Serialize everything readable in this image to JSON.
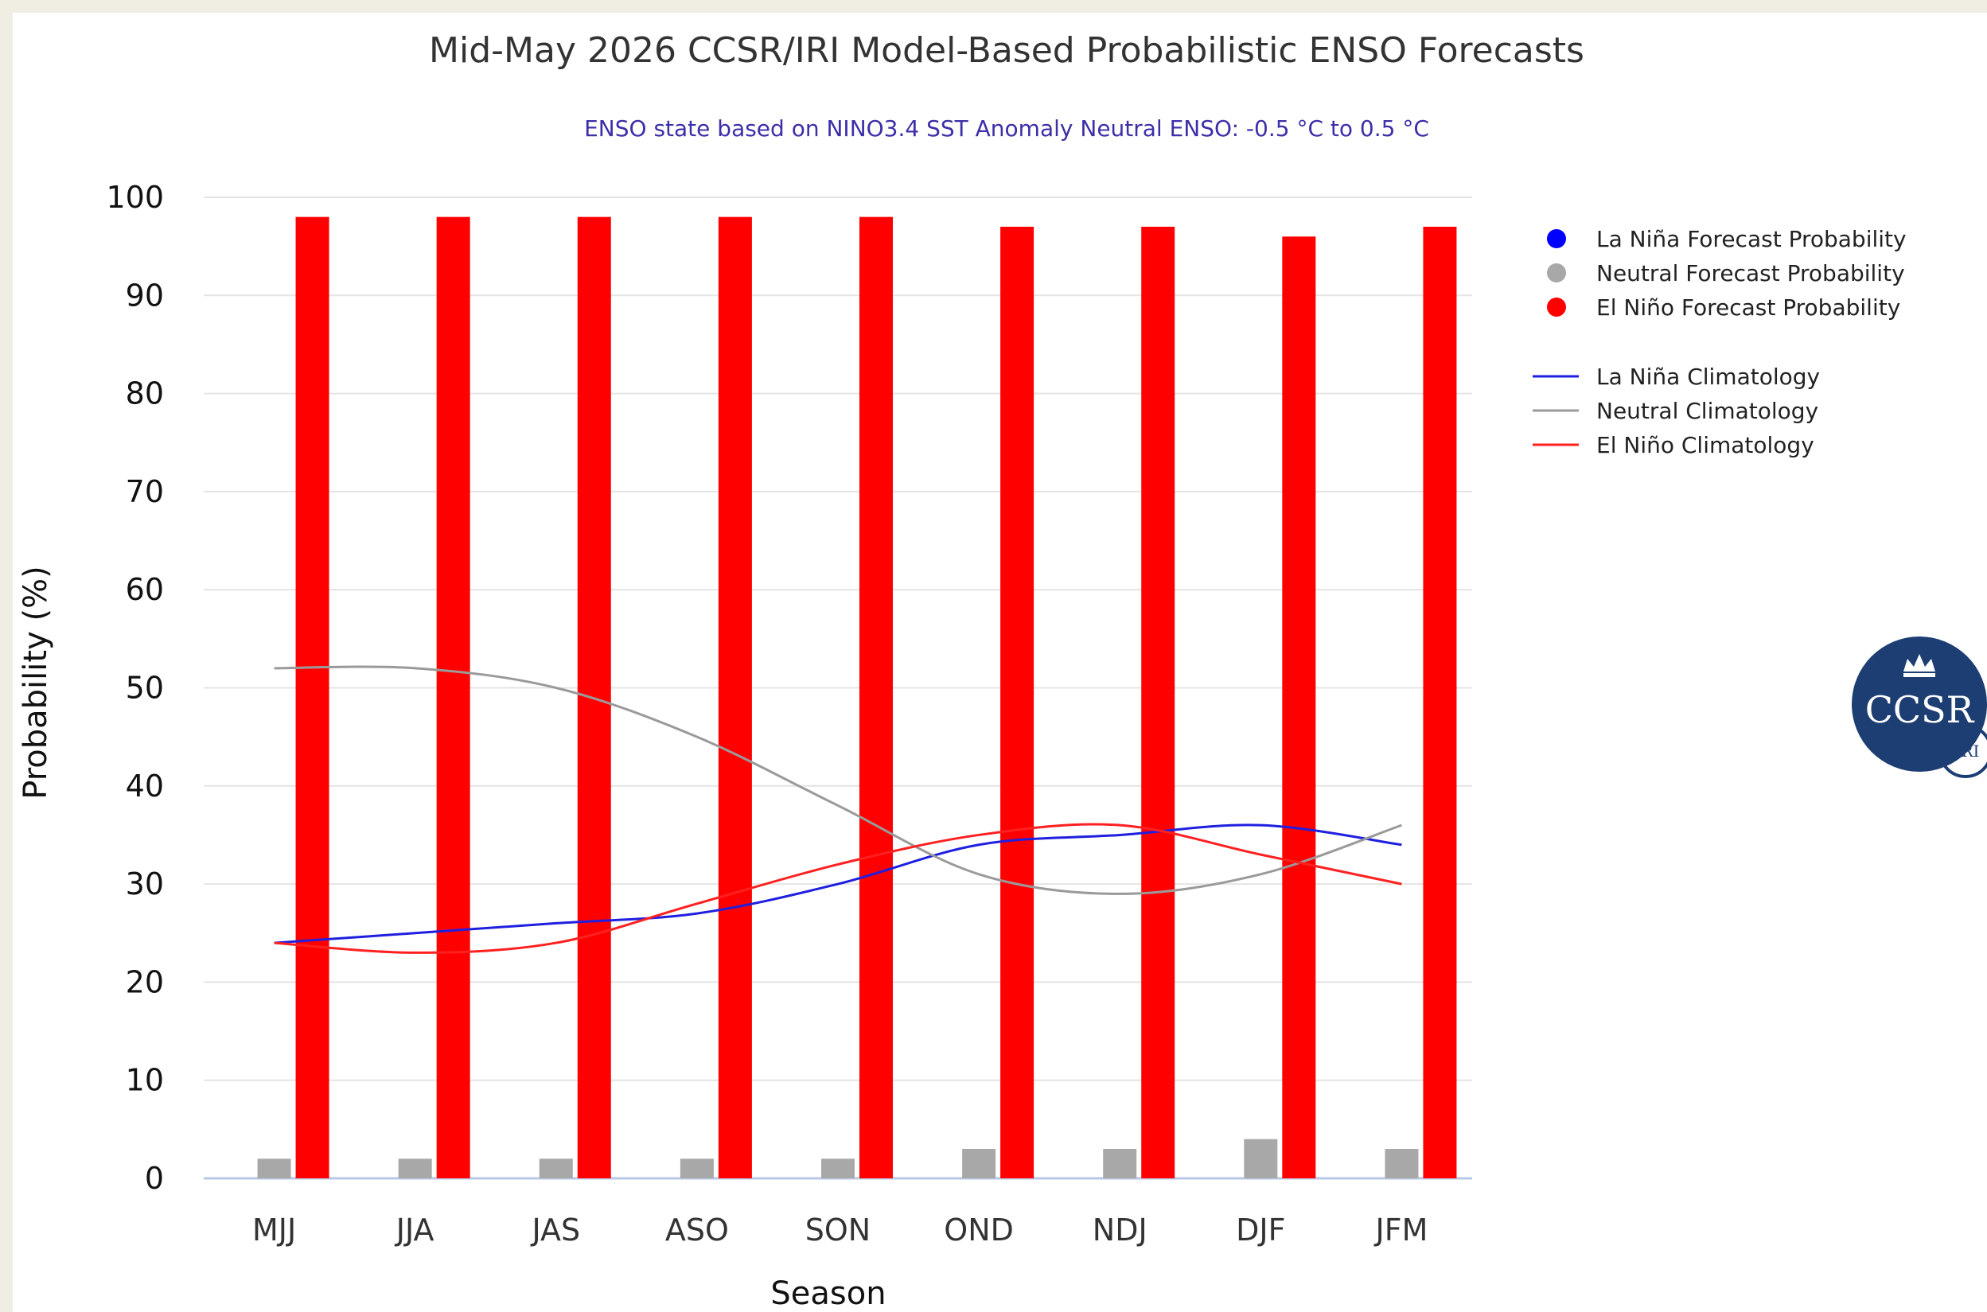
{
  "chart_data": {
    "type": "bar",
    "title": "Mid-May 2026 CCSR/IRI Model-Based Probabilistic ENSO Forecasts",
    "subtitle": "ENSO state based on NINO3.4 SST Anomaly Neutral ENSO: -0.5 °C to 0.5 °C",
    "xlabel": "Season",
    "ylabel": "Probability (%)",
    "ylim": [
      0,
      100
    ],
    "yticks": [
      0,
      10,
      20,
      30,
      40,
      50,
      60,
      70,
      80,
      90,
      100
    ],
    "grid": true,
    "legend_position": "right",
    "categories": [
      "MJJ",
      "JJA",
      "JAS",
      "ASO",
      "SON",
      "OND",
      "NDJ",
      "DJF",
      "JFM"
    ],
    "series": [
      {
        "name": "La Niña Forecast Probability",
        "kind": "bar",
        "color": "#0000ff",
        "values": [
          0,
          0,
          0,
          0,
          0,
          0,
          0,
          0,
          0
        ]
      },
      {
        "name": "Neutral Forecast Probability",
        "kind": "bar",
        "color": "#a8a8a8",
        "values": [
          2,
          2,
          2,
          2,
          2,
          3,
          3,
          4,
          3
        ]
      },
      {
        "name": "El Niño Forecast Probability",
        "kind": "bar",
        "color": "#ff0000",
        "values": [
          98,
          98,
          98,
          98,
          98,
          97,
          97,
          96,
          97
        ]
      }
    ],
    "climatology": [
      {
        "name": "La Niña Climatology",
        "kind": "line",
        "color": "#1f1fe0",
        "values": [
          24,
          25,
          26,
          27,
          30,
          34,
          35,
          36,
          34
        ]
      },
      {
        "name": "Neutral Climatology",
        "kind": "line",
        "color": "#9a9a9a",
        "values": [
          52,
          52,
          50,
          45,
          38,
          31,
          29,
          31,
          36
        ]
      },
      {
        "name": "El Niño Climatology",
        "kind": "line",
        "color": "#ff2020",
        "values": [
          24,
          23,
          24,
          28,
          32,
          35,
          36,
          33,
          30
        ]
      }
    ]
  },
  "logo": {
    "main_text": "CCSR",
    "secondary_text": "IRI"
  }
}
